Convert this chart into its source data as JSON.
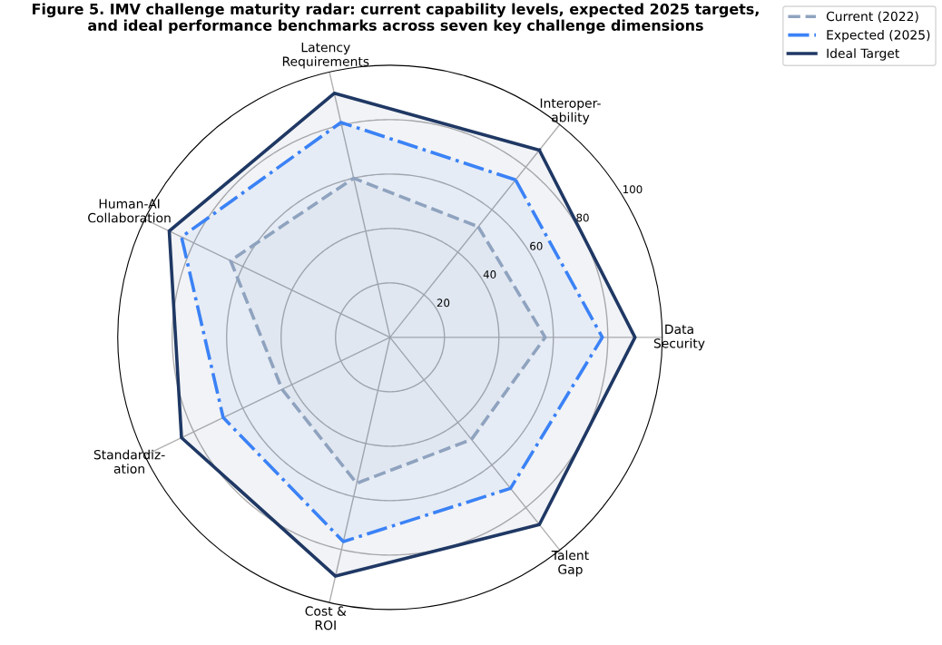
{
  "chart_data": {
    "type": "radar",
    "title": "Figure 5. IMV challenge maturity radar: current capability levels, expected 2025 targets,\nand ideal performance benchmarks across seven key challenge dimensions",
    "categories": [
      "Interoper-\nability",
      "Data\nSecurity",
      "Talent\nGap",
      "Cost &\nROI",
      "Standardiz-\nation",
      "Human-AI\nCollaboration",
      "Latency\nRequirements"
    ],
    "series": [
      {
        "name": "Current (2022)",
        "color": "#8fa3bf",
        "line_style": "dashed",
        "values": [
          52,
          57,
          48,
          55,
          44,
          65,
          60
        ]
      },
      {
        "name": "Expected (2025)",
        "color": "#3b82f6",
        "line_style": "dashdot",
        "values": [
          74,
          78,
          71,
          77,
          68,
          85,
          81
        ]
      },
      {
        "name": "Ideal Target",
        "color": "#1f3864",
        "line_style": "solid",
        "values": [
          88,
          90,
          88,
          90,
          85,
          90,
          92
        ]
      }
    ],
    "ylim": [
      0,
      100
    ],
    "yticks": [
      20,
      40,
      60,
      80,
      100
    ],
    "grid": true,
    "legend": "top right"
  }
}
